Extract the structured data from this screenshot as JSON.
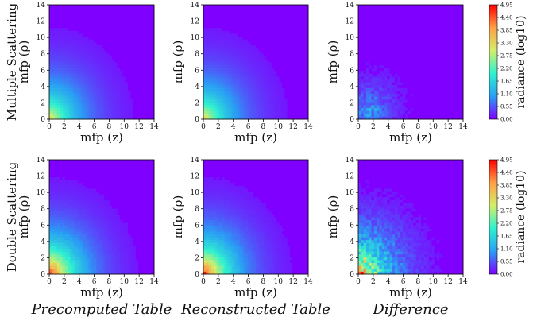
{
  "chart_data": {
    "type": "heatmap",
    "xlabel": "mfp (z)",
    "ylabel": "mfp (ρ)",
    "xlim": [
      0,
      14
    ],
    "ylim": [
      0,
      14
    ],
    "x_ticks": [
      "0",
      "2",
      "4",
      "6",
      "8",
      "10",
      "12",
      "14"
    ],
    "y_ticks": [
      "0",
      "2",
      "4",
      "6",
      "8",
      "10",
      "12",
      "14"
    ],
    "row_labels": [
      "Multiple Scattering",
      "Double Scattering"
    ],
    "column_titles": [
      "Precomputed Table",
      "Reconstructed Table",
      "Difference"
    ],
    "colorbar": {
      "label": "radiance (log10)",
      "min": 0.0,
      "max": 4.95,
      "ticks": [
        "4.95",
        "4.40",
        "3.85",
        "3.30",
        "2.75",
        "2.20",
        "1.65",
        "1.10",
        "0.55",
        "0.00"
      ],
      "colormap": "rainbow",
      "colors": [
        "#7f00ff",
        "#2a9df4",
        "#2ef2d0",
        "#d4ee6a",
        "#ff9f48",
        "#ff0000"
      ]
    },
    "panels": [
      {
        "row": 0,
        "col": 0,
        "peak_value": 3.4,
        "peak_at": [
          0,
          0
        ],
        "decay_mfp": 3.6,
        "noise": 0.01,
        "shape": "smooth radial falloff from origin"
      },
      {
        "row": 0,
        "col": 1,
        "peak_value": 3.4,
        "peak_at": [
          0,
          0
        ],
        "decay_mfp": 3.6,
        "noise": 0.01,
        "shape": "smooth radial falloff from origin"
      },
      {
        "row": 0,
        "col": 2,
        "peak_value": 1.2,
        "peak_at": [
          1.5,
          1
        ],
        "decay_mfp": 2.5,
        "noise": 0.15,
        "shape": "noisy residual near origin"
      },
      {
        "row": 1,
        "col": 0,
        "peak_value": 4.9,
        "peak_at": [
          0,
          0
        ],
        "decay_mfp": 3.4,
        "noise": 0.05,
        "shape": "radial falloff from origin"
      },
      {
        "row": 1,
        "col": 1,
        "peak_value": 4.9,
        "peak_at": [
          0,
          0
        ],
        "decay_mfp": 3.4,
        "noise": 0.05,
        "shape": "radial falloff from origin"
      },
      {
        "row": 1,
        "col": 2,
        "peak_value": 4.7,
        "peak_at": [
          0,
          0
        ],
        "decay_mfp": 3.1,
        "noise": 0.12,
        "shape": "noisy radial falloff from origin"
      }
    ]
  }
}
